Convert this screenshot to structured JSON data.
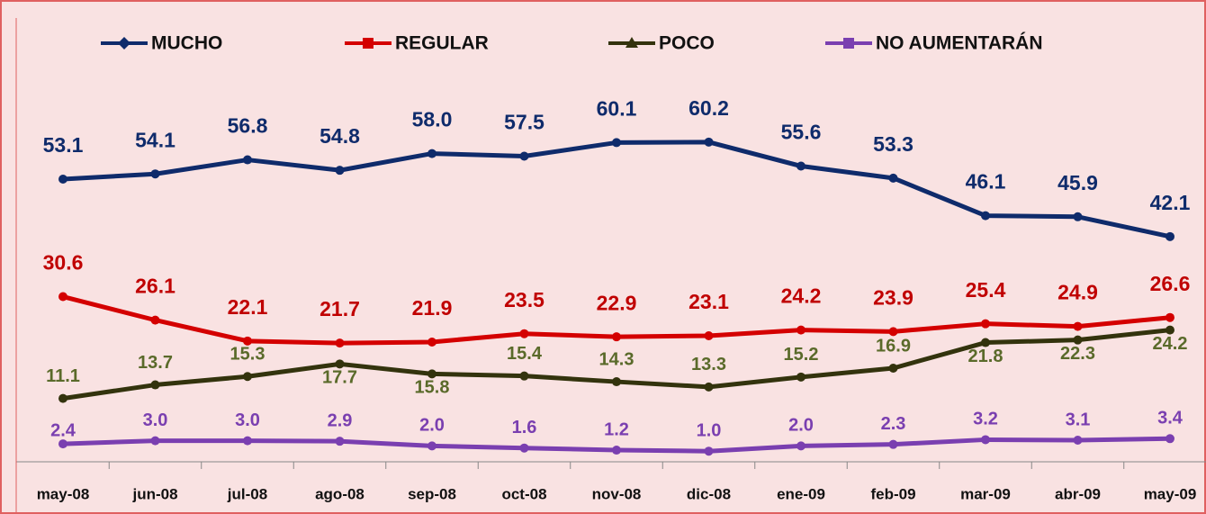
{
  "chart_data": {
    "type": "line",
    "categories": [
      "may-08",
      "jun-08",
      "jul-08",
      "ago-08",
      "sep-08",
      "oct-08",
      "nov-08",
      "dic-08",
      "ene-09",
      "feb-09",
      "mar-09",
      "abr-09",
      "may-09"
    ],
    "series": [
      {
        "name": "MUCHO",
        "color": "#0f2b6b",
        "label_color": "#0f2b6b",
        "values": [
          53.1,
          54.1,
          56.8,
          54.8,
          58.0,
          57.5,
          60.1,
          60.2,
          55.6,
          53.3,
          46.1,
          45.9,
          42.1
        ],
        "value_labels": [
          "53.1",
          "54.1",
          "56.8",
          "54.8",
          "58.0",
          "57.5",
          "60.1",
          "60.2",
          "55.6",
          "53.3",
          "46.1",
          "45.9",
          "42.1"
        ]
      },
      {
        "name": "REGULAR",
        "color": "#d40000",
        "label_color": "#c00000",
        "values": [
          30.6,
          26.1,
          22.1,
          21.7,
          21.9,
          23.5,
          22.9,
          23.1,
          24.2,
          23.9,
          25.4,
          24.9,
          26.6
        ],
        "value_labels": [
          "30.6",
          "26.1",
          "22.1",
          "21.7",
          "21.9",
          "23.5",
          "22.9",
          "23.1",
          "24.2",
          "23.9",
          "25.4",
          "24.9",
          "26.6"
        ]
      },
      {
        "name": "POCO",
        "color": "#33330d",
        "label_color": "#5a6a2a",
        "values": [
          11.1,
          13.7,
          15.3,
          17.7,
          15.8,
          15.4,
          14.3,
          13.3,
          15.2,
          16.9,
          21.8,
          22.3,
          24.2
        ],
        "value_labels": [
          "11.1",
          "13.7",
          "15.3",
          "17.7",
          "15.8",
          "15.4",
          "14.3",
          "13.3",
          "15.2",
          "16.9",
          "21.8",
          "22.3",
          "24.2"
        ]
      },
      {
        "name": "NO AUMENTARÁN",
        "color": "#7a3fb0",
        "label_color": "#7a3fb0",
        "values": [
          2.4,
          3.0,
          3.0,
          2.9,
          2.0,
          1.6,
          1.2,
          1.0,
          2.0,
          2.3,
          3.2,
          3.1,
          3.4
        ],
        "value_labels": [
          "2.4",
          "3.0",
          "3.0",
          "2.9",
          "2.0",
          "1.6",
          "1.2",
          "1.0",
          "2.0",
          "2.3",
          "3.2",
          "3.1",
          "3.4"
        ]
      }
    ]
  }
}
